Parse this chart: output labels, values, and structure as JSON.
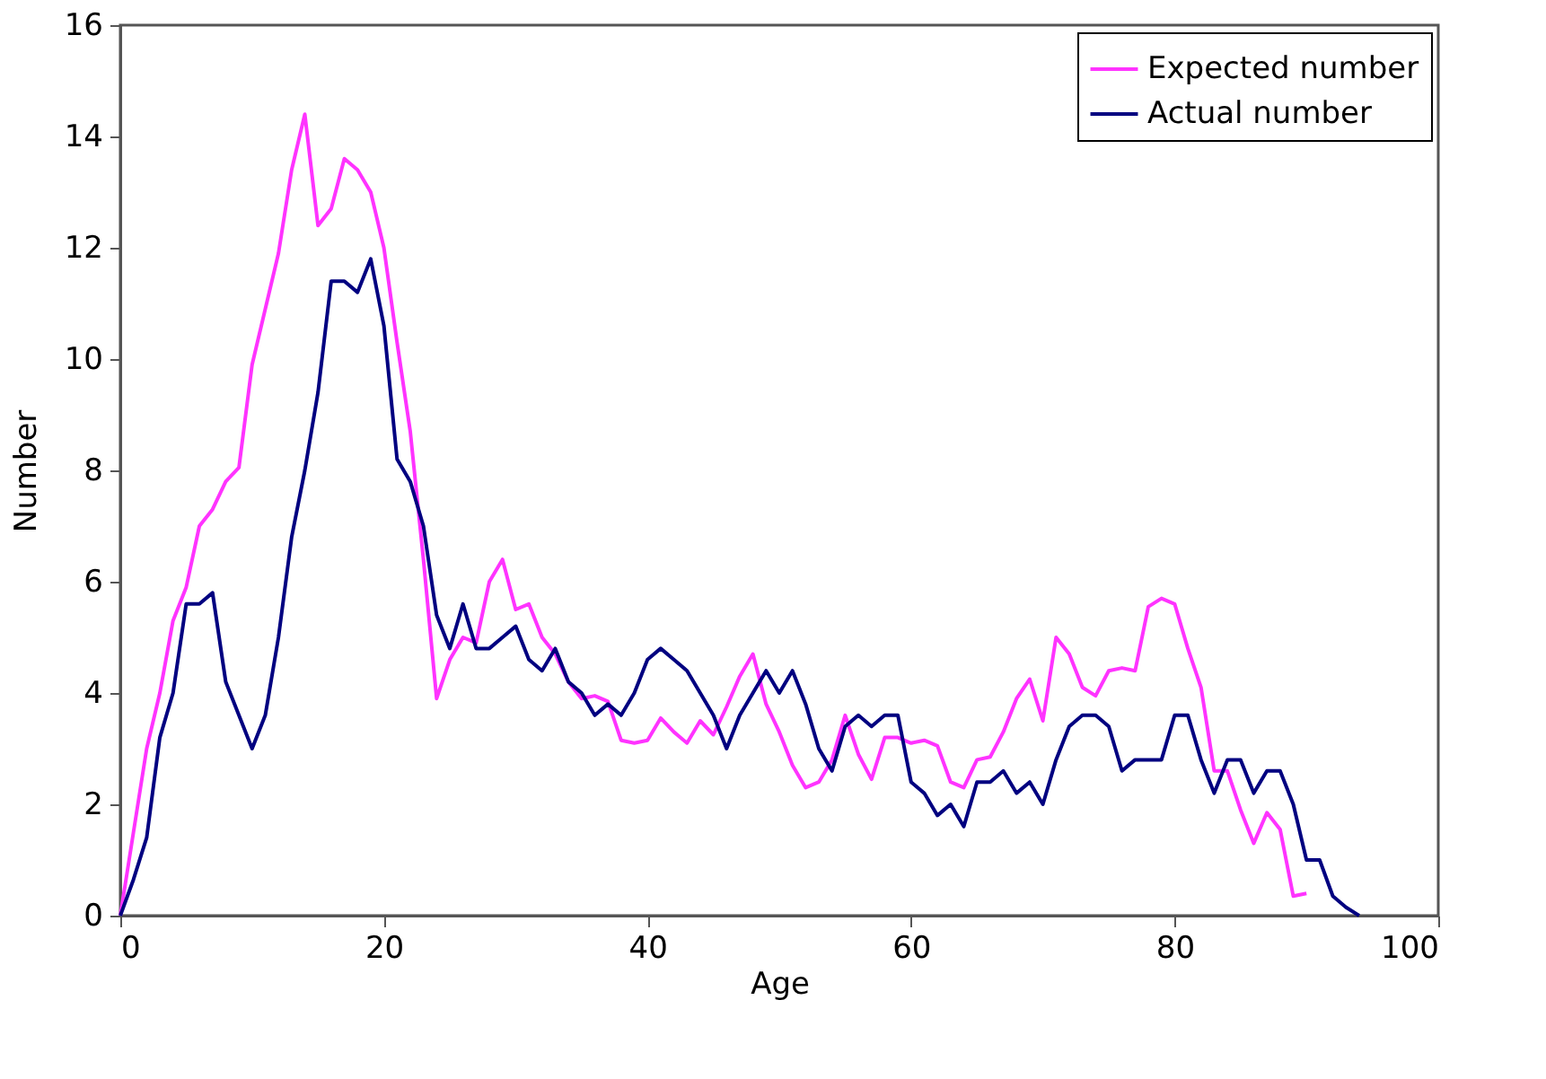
{
  "chart_data": {
    "type": "line",
    "xlabel": "Age",
    "ylabel": "Number",
    "xlim": [
      0,
      100
    ],
    "xticks": [
      0,
      20,
      40,
      60,
      80,
      100
    ],
    "ylim": [
      0,
      16
    ],
    "yticks": [
      0,
      2,
      4,
      6,
      8,
      10,
      12,
      14,
      16
    ],
    "grid": false,
    "legend": "top right",
    "marker": "none",
    "line_style": "solid",
    "series": [
      {
        "name": "Expected number",
        "color": "#ff33ff",
        "x": [
          0,
          1,
          2,
          3,
          4,
          5,
          6,
          7,
          8,
          9,
          10,
          11,
          12,
          13,
          14,
          15,
          16,
          17,
          18,
          19,
          20,
          21,
          22,
          23,
          24,
          25,
          26,
          27,
          28,
          29,
          30,
          31,
          32,
          33,
          34,
          35,
          36,
          37,
          38,
          39,
          40,
          41,
          42,
          43,
          44,
          45,
          46,
          47,
          48,
          49,
          50,
          51,
          52,
          53,
          54,
          55,
          56,
          57,
          58,
          59,
          60,
          61,
          62,
          63,
          64,
          65,
          66,
          67,
          68,
          69,
          70,
          71,
          72,
          73,
          74,
          75,
          76,
          77,
          78,
          79,
          80,
          81,
          82,
          83,
          84,
          85,
          86,
          87,
          88,
          89,
          90
        ],
        "values": [
          0,
          1.5,
          3,
          4,
          5.3,
          5.9,
          7.0,
          7.3,
          7.8,
          8.05,
          9.9,
          10.9,
          11.9,
          13.4,
          14.4,
          12.4,
          12.7,
          13.6,
          13.4,
          13.0,
          12.0,
          10.3,
          8.7,
          6.4,
          3.9,
          4.6,
          5.0,
          4.9,
          6.0,
          6.4,
          5.5,
          5.6,
          5.0,
          4.7,
          4.2,
          3.9,
          3.95,
          3.85,
          3.15,
          3.1,
          3.15,
          3.55,
          3.3,
          3.1,
          3.5,
          3.25,
          3.75,
          4.3,
          4.7,
          3.8,
          3.3,
          2.7,
          2.3,
          2.4,
          2.8,
          3.6,
          2.9,
          2.45,
          3.2,
          3.2,
          3.1,
          3.15,
          3.05,
          2.4,
          2.3,
          2.8,
          2.85,
          3.3,
          3.9,
          4.25,
          3.5,
          5.0,
          4.7,
          4.1,
          3.95,
          4.4,
          4.45,
          4.4,
          5.55,
          5.7,
          5.6,
          4.8,
          4.1,
          2.6,
          2.6,
          1.9,
          1.3,
          1.85,
          1.55,
          0.35,
          0.4
        ]
      },
      {
        "name": "Actual number",
        "color": "#000080",
        "x": [
          0,
          1,
          2,
          3,
          4,
          5,
          6,
          7,
          8,
          9,
          10,
          11,
          12,
          13,
          14,
          15,
          16,
          17,
          18,
          19,
          20,
          21,
          22,
          23,
          24,
          25,
          26,
          27,
          28,
          29,
          30,
          31,
          32,
          33,
          34,
          35,
          36,
          37,
          38,
          39,
          40,
          41,
          42,
          43,
          44,
          45,
          46,
          47,
          48,
          49,
          50,
          51,
          52,
          53,
          54,
          55,
          56,
          57,
          58,
          59,
          60,
          61,
          62,
          63,
          64,
          65,
          66,
          67,
          68,
          69,
          70,
          71,
          72,
          73,
          74,
          75,
          76,
          77,
          78,
          79,
          80,
          81,
          82,
          83,
          84,
          85,
          86,
          87,
          88,
          89,
          90,
          91,
          92,
          93,
          94
        ],
        "values": [
          0,
          0.65,
          1.4,
          3.2,
          4.0,
          5.6,
          5.6,
          5.8,
          4.2,
          3.6,
          3.0,
          3.6,
          5.0,
          6.8,
          8.0,
          9.4,
          11.4,
          11.4,
          11.2,
          11.8,
          10.6,
          8.2,
          7.8,
          7.0,
          5.4,
          4.8,
          5.6,
          4.8,
          4.8,
          5.0,
          5.2,
          4.6,
          4.4,
          4.8,
          4.2,
          4.0,
          3.6,
          3.8,
          3.6,
          4.0,
          4.6,
          4.8,
          4.6,
          4.4,
          4.0,
          3.6,
          3.0,
          3.6,
          4.0,
          4.4,
          4.0,
          4.4,
          3.8,
          3.0,
          2.6,
          3.4,
          3.6,
          3.4,
          3.6,
          3.6,
          2.4,
          2.2,
          1.8,
          2.0,
          1.6,
          2.4,
          2.4,
          2.6,
          2.2,
          2.4,
          2.0,
          2.8,
          3.4,
          3.6,
          3.6,
          3.4,
          2.6,
          2.8,
          2.8,
          2.8,
          3.6,
          3.6,
          2.8,
          2.2,
          2.8,
          2.8,
          2.2,
          2.6,
          2.6,
          2.0,
          1.0,
          1.0,
          0.35,
          0.15,
          0
        ]
      }
    ]
  }
}
